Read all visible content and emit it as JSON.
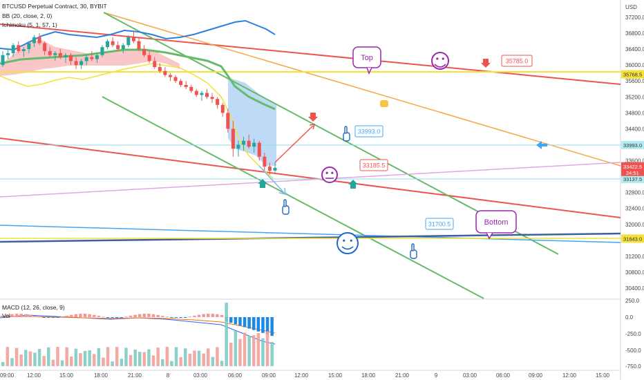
{
  "header": {
    "title": "BTCUSD Perpetual Contract, 30, BYBIT",
    "indicator_bb": "BB (20, close, 2, 0)",
    "indicator_ichimoku": "Ichimoku (5, 1, 57, 1)"
  },
  "macd_panel": {
    "label": "MACD (12, 26, close, 9)",
    "vol_label": "Vol",
    "y_ticks": [
      "250.0",
      "0.0",
      "-250.0",
      "-500.0",
      "-750.0"
    ]
  },
  "colors": {
    "bull": "#26a69a",
    "bear": "#ef5350",
    "red_line": "#ef5350",
    "green_line": "#66bb6a",
    "orange_line": "#f5a742",
    "blue_line": "#42a5f5",
    "navy_line": "#3f5f9f",
    "yellow_line": "#f3e03a",
    "violet_line": "#e1a6e6",
    "cyan_line": "#8fdcea",
    "bb_upper": "#2a7fe0",
    "cloud_bull": "#a5d6a7",
    "cloud_bear": "#f7b4b4",
    "cloud_blue": "#b3d4f5",
    "baseline_green": "#66bb6a",
    "annotation_purple": "#9c27b0",
    "annotation_blue": "#2166c4"
  },
  "chart_data": {
    "type": "candlestick",
    "symbol": "BTCUSD",
    "exchange": "BYBIT",
    "interval": "30",
    "ylim": [
      30200,
      37400
    ],
    "y_ticks": [
      30400,
      30800,
      31200,
      31600,
      32000,
      32400,
      32800,
      33200,
      33600,
      34000,
      34400,
      34800,
      35200,
      35600,
      36000,
      36400,
      36800,
      37200
    ],
    "y_tick_labels": [
      "30400.0",
      "30800.0",
      "31200.0",
      "31600.0",
      "32000.0",
      "32400.0",
      "32800.0",
      "33200.0",
      "33600.0",
      "34000.0",
      "34400.0",
      "34800.0",
      "35200.0",
      "35600.0",
      "36000.0",
      "36400.0",
      "36800.0",
      "37200.0"
    ],
    "y_unit_label": "USD",
    "x_tick_labels": [
      "09:00",
      "12:00",
      "15:00",
      "18:00",
      "21:00",
      "8",
      "03:00",
      "06:00",
      "09:00",
      "12:00",
      "15:00",
      "18:00",
      "21:00",
      "9",
      "03:00",
      "06:00",
      "09:00",
      "12:00",
      "15:00"
    ],
    "last_price": {
      "value": "33422.5",
      "countdown": "24:51"
    },
    "price_labels": [
      {
        "value": 35768.5,
        "text": "35768.5",
        "color": "#f3e03a",
        "text_color": "#333333"
      },
      {
        "value": 33993.0,
        "text": "33993.0",
        "color": "#b2ebf2",
        "text_color": "#333333"
      },
      {
        "value": 33137.5,
        "text": "33137.5",
        "color": "#b2ebf2",
        "text_color": "#333333"
      },
      {
        "value": 31643.0,
        "text": "31643.0",
        "color": "#f3e03a",
        "text_color": "#333333"
      }
    ],
    "annotations": [
      {
        "text": "35785.0",
        "color": "#ef5350"
      },
      {
        "text": "33993.0",
        "color": "#42a5f5"
      },
      {
        "text": "33185.5",
        "color": "#ef5350"
      },
      {
        "text": "31700.5",
        "color": "#42a5f5"
      },
      {
        "text": "Top",
        "color": "#9c27b0"
      },
      {
        "text": "Bottom",
        "color": "#9c27b0"
      }
    ],
    "candles": [
      [
        36000,
        36350,
        35950,
        36250
      ],
      [
        36250,
        36420,
        36150,
        36300
      ],
      [
        36300,
        36550,
        36200,
        36500
      ],
      [
        36500,
        36600,
        36300,
        36350
      ],
      [
        36350,
        36450,
        36200,
        36400
      ],
      [
        36400,
        36600,
        36300,
        36550
      ],
      [
        36550,
        36750,
        36450,
        36700
      ],
      [
        36700,
        36800,
        36500,
        36550
      ],
      [
        36550,
        36600,
        36250,
        36350
      ],
      [
        36350,
        36450,
        36200,
        36250
      ],
      [
        36250,
        36350,
        36100,
        36300
      ],
      [
        36300,
        36400,
        36150,
        36200
      ],
      [
        36200,
        36300,
        36050,
        36250
      ],
      [
        36250,
        36300,
        36000,
        36100
      ],
      [
        36100,
        36200,
        35900,
        36000
      ],
      [
        36000,
        36150,
        35900,
        36100
      ],
      [
        36100,
        36250,
        36000,
        36200
      ],
      [
        36200,
        36350,
        36100,
        36150
      ],
      [
        36150,
        36300,
        36050,
        36250
      ],
      [
        36250,
        36500,
        36200,
        36450
      ],
      [
        36450,
        36650,
        36400,
        36600
      ],
      [
        36600,
        36700,
        36450,
        36500
      ],
      [
        36500,
        36600,
        36350,
        36400
      ],
      [
        36400,
        36550,
        36300,
        36500
      ],
      [
        36500,
        36750,
        36450,
        36700
      ],
      [
        36700,
        36850,
        36550,
        36600
      ],
      [
        36600,
        36700,
        36350,
        36400
      ],
      [
        36400,
        36500,
        36200,
        36250
      ],
      [
        36250,
        36350,
        36050,
        36100
      ],
      [
        36100,
        36200,
        35900,
        35950
      ],
      [
        35950,
        36050,
        35800,
        35850
      ],
      [
        35850,
        35950,
        35700,
        35750
      ],
      [
        35750,
        35800,
        35600,
        35700
      ],
      [
        35700,
        35750,
        35550,
        35600
      ],
      [
        35600,
        35650,
        35450,
        35500
      ],
      [
        35500,
        35600,
        35400,
        35450
      ],
      [
        35450,
        35500,
        35300,
        35350
      ],
      [
        35350,
        35400,
        35200,
        35250
      ],
      [
        35250,
        35350,
        35100,
        35300
      ],
      [
        35300,
        35400,
        35150,
        35200
      ],
      [
        35200,
        35300,
        35050,
        35150
      ],
      [
        35150,
        35200,
        34900,
        35000
      ],
      [
        35000,
        35050,
        34700,
        34800
      ],
      [
        34800,
        34900,
        34300,
        34400
      ],
      [
        34400,
        34600,
        33700,
        33900
      ],
      [
        33900,
        34100,
        33700,
        34000
      ],
      [
        34000,
        34200,
        33850,
        34100
      ],
      [
        34100,
        34250,
        33900,
        33950
      ],
      [
        33950,
        34150,
        33800,
        34050
      ],
      [
        34050,
        34100,
        33600,
        33700
      ],
      [
        33700,
        33800,
        33350,
        33450
      ],
      [
        33450,
        33550,
        33250,
        33350
      ],
      [
        33350,
        33550,
        33300,
        33420
      ]
    ]
  }
}
